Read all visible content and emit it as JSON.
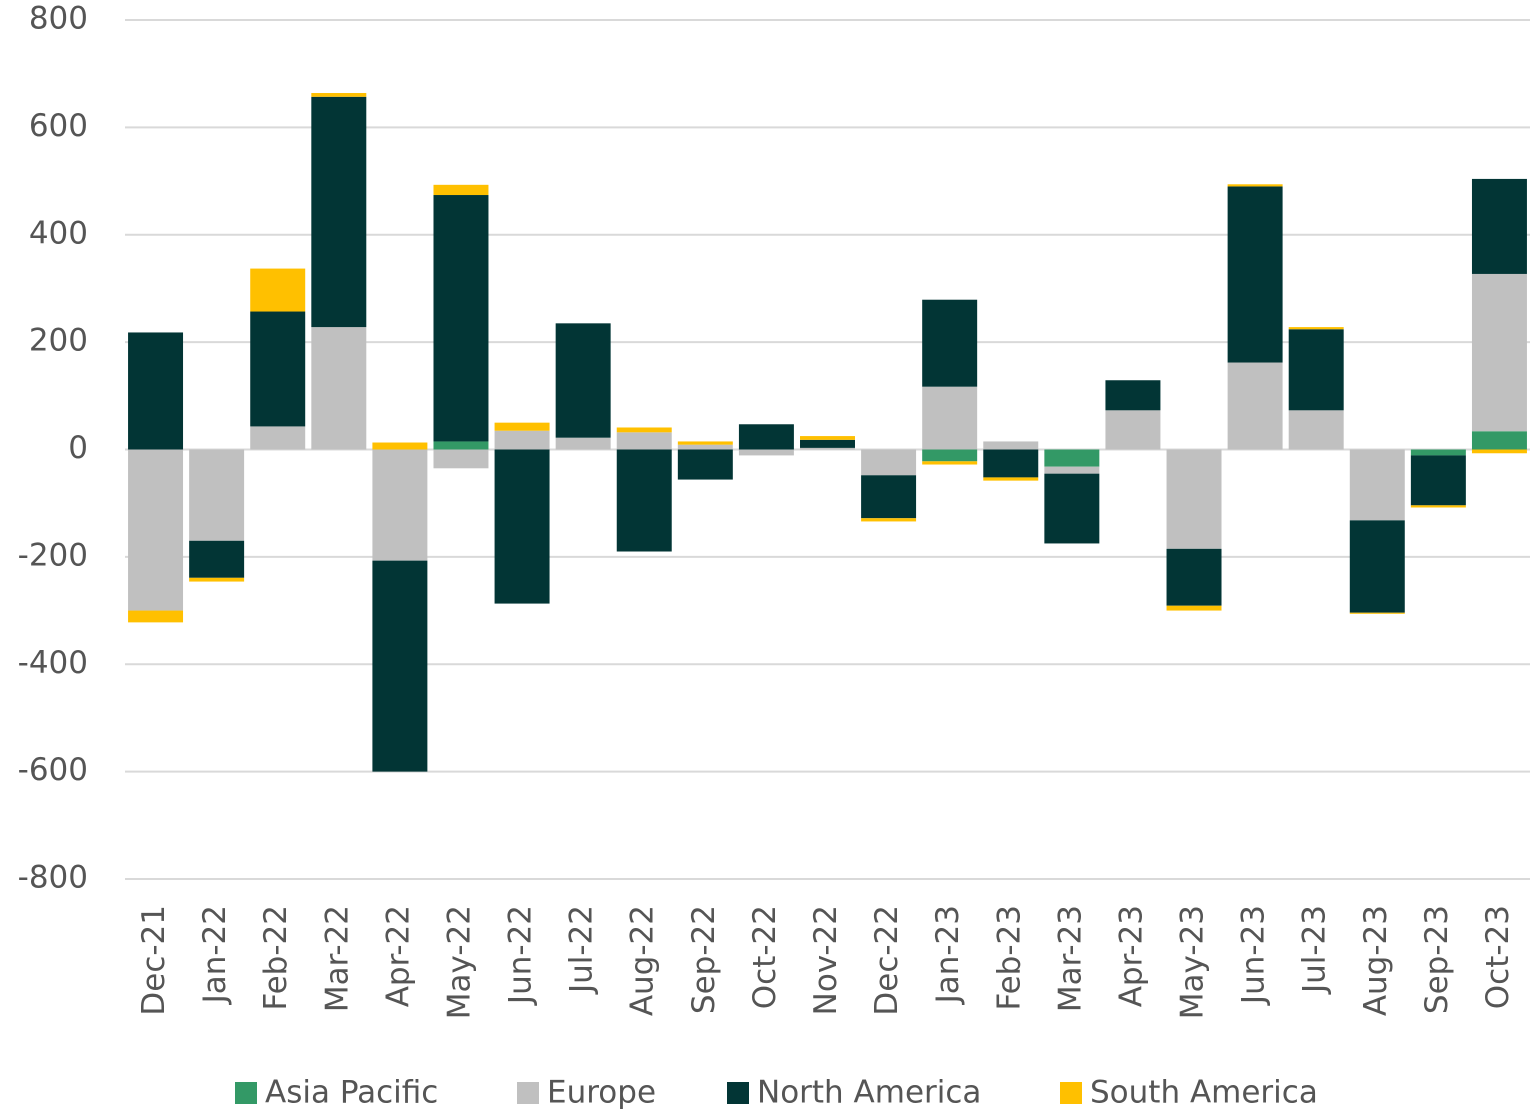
{
  "chart_data": {
    "type": "stacked_bar",
    "categories": [
      "Dec-21",
      "Jan-22",
      "Feb-22",
      "Mar-22",
      "Apr-22",
      "May-22",
      "Jun-22",
      "Jul-22",
      "Aug-22",
      "Sep-22",
      "Oct-22",
      "Nov-22",
      "Dec-22",
      "Jan-23",
      "Feb-23",
      "Mar-23",
      "Apr-23",
      "May-23",
      "Jun-23",
      "Jul-23",
      "Aug-23",
      "Sep-23",
      "Oct-23"
    ],
    "series": [
      {
        "name": "Asia Pacific",
        "color": "#339966",
        "values": [
          0,
          0,
          0,
          0,
          0,
          15,
          0,
          0,
          0,
          0,
          0,
          0,
          0,
          -22,
          0,
          -32,
          0,
          0,
          0,
          0,
          0,
          -11,
          34
        ]
      },
      {
        "name": "Europe",
        "color": "#c0c0c0",
        "values": [
          -300,
          -170,
          43,
          228,
          -207,
          -35,
          35,
          22,
          32,
          9,
          -11,
          3,
          -48,
          117,
          15,
          -13,
          73,
          -185,
          162,
          73,
          -132,
          0,
          293
        ]
      },
      {
        "name": "North America",
        "color": "#023535",
        "values": [
          218,
          -69,
          214,
          429,
          -393,
          459,
          -287,
          213,
          -190,
          -56,
          47,
          15,
          -80,
          162,
          -52,
          -130,
          56,
          -106,
          328,
          151,
          -172,
          -93,
          177
        ]
      },
      {
        "name": "South America",
        "color": "#ffc000",
        "values": [
          -22,
          -7,
          80,
          7,
          13,
          19,
          15,
          0,
          9,
          6,
          0,
          7,
          -6,
          -6,
          -6,
          0,
          0,
          -9,
          4,
          4,
          -2,
          -4,
          -7
        ]
      }
    ],
    "ylim": [
      -800,
      800
    ],
    "yticks": [
      -800,
      -600,
      -400,
      -200,
      0,
      200,
      400,
      600,
      800
    ],
    "grid": true,
    "legend": "bottom"
  }
}
